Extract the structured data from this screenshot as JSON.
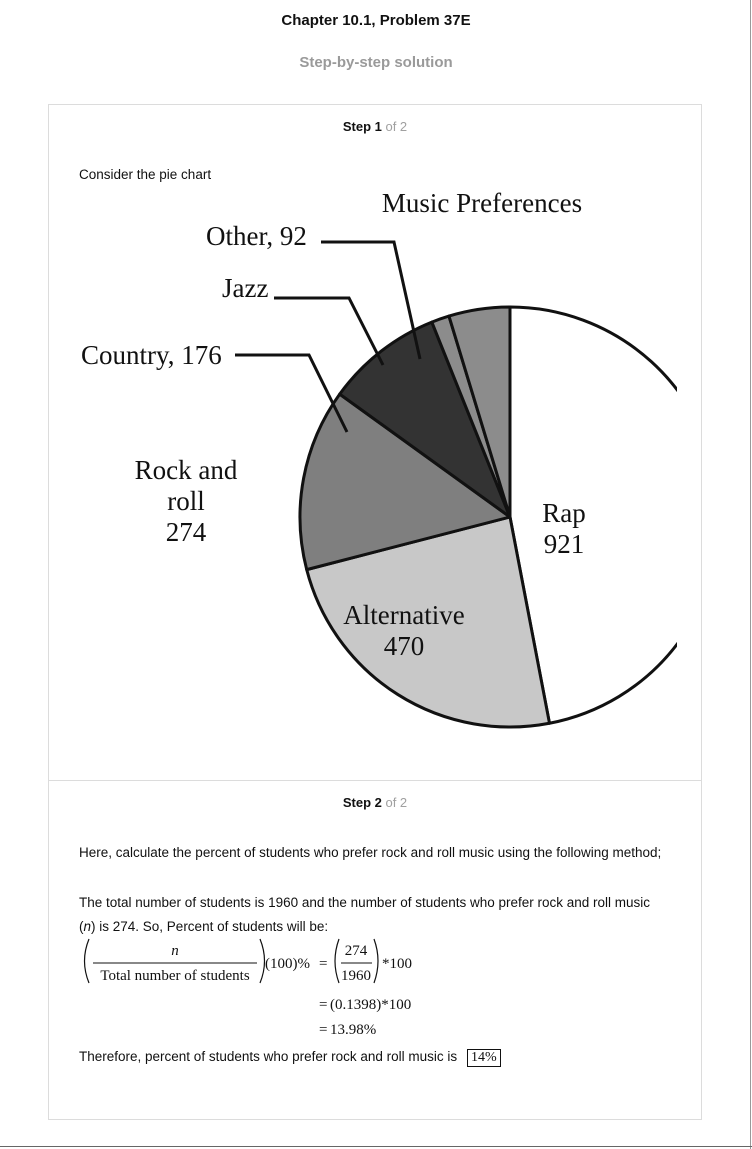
{
  "header": {
    "title": "Chapter 10.1, Problem 37E",
    "subtitle": "Step-by-step solution"
  },
  "step1": {
    "label": "Step 1",
    "of": " of 2",
    "intro": "Consider the pie chart"
  },
  "chart_data": {
    "type": "pie",
    "title": "Music Preferences",
    "slices": [
      {
        "label": "Rap",
        "value": 921,
        "color": "#ffffff"
      },
      {
        "label": "Alternative",
        "value": 470,
        "color": "#c8c8c8"
      },
      {
        "label": "Rock and roll",
        "value": 274,
        "color": "#7f7f7f"
      },
      {
        "label": "Country",
        "value": 176,
        "color": "#333333"
      },
      {
        "label": "Jazz",
        "value": 27,
        "color": "#8c8c8c"
      },
      {
        "label": "Other",
        "value": 92,
        "color": "#8c8c8c"
      }
    ],
    "labels": {
      "rap_name": "Rap",
      "rap_value": "921",
      "alt_name": "Alternative",
      "alt_value": "470",
      "rock_line1": "Rock and",
      "rock_line2": "roll",
      "rock_value": "274",
      "country": "Country, 176",
      "jazz": "Jazz",
      "other": "Other, 92"
    }
  },
  "step2": {
    "label": "Step 2",
    "of": " of 2",
    "para1": "Here, calculate the percent of students who prefer rock and roll music using the following method;",
    "para2_a": "The total number of students is 1960 and the number of students who prefer rock and roll music (",
    "para2_var": "n",
    "para2_b": ") is 274. So, Percent of students will be:",
    "math": {
      "numerator": "n",
      "denominator": "Total number of students",
      "factor": "(100)%",
      "equals": "=",
      "frac_num": "274",
      "frac_den": "1960",
      "times100": "*100",
      "line2": "(0.1398)*100",
      "line3": "13.98%"
    },
    "conclusion": "Therefore, percent of students who prefer rock and roll music is",
    "answer": "14%"
  }
}
